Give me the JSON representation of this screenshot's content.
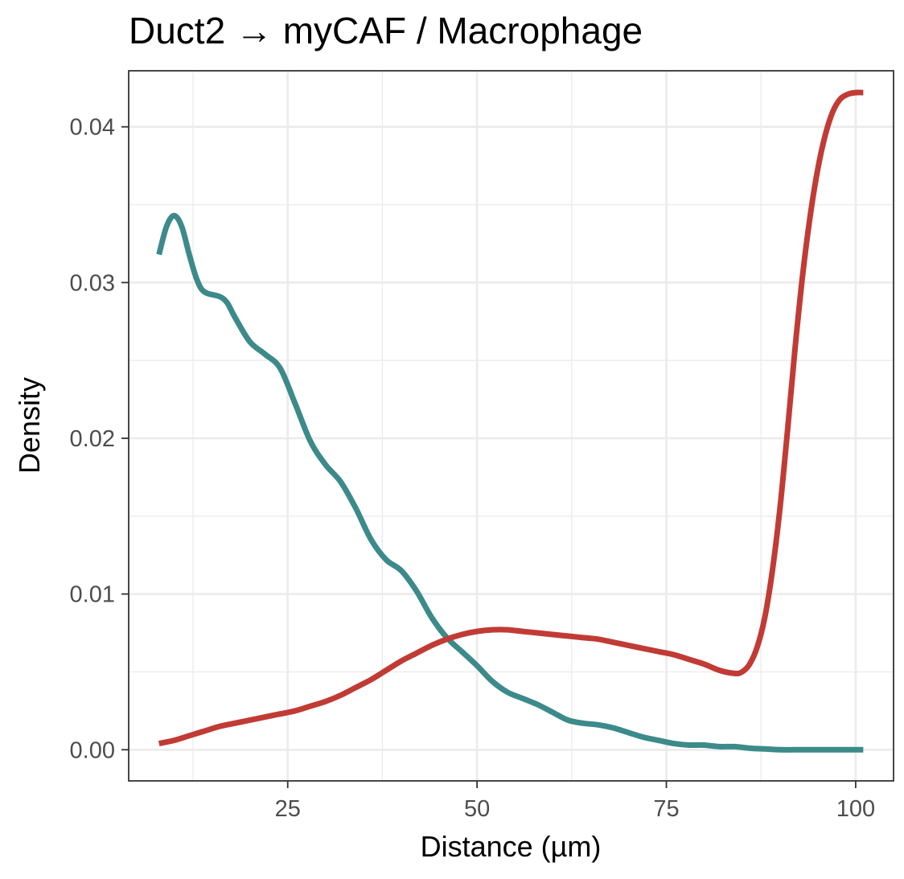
{
  "chart_data": {
    "type": "line",
    "title": "Duct2 → myCAF / Macrophage",
    "xlabel": "Distance (µm)",
    "ylabel": "Density",
    "xlim": [
      4,
      105
    ],
    "ylim": [
      -0.002,
      0.0436
    ],
    "x_ticks": [
      25,
      50,
      75,
      100
    ],
    "x_tick_labels": [
      "25",
      "50",
      "75",
      "100"
    ],
    "y_ticks": [
      0.0,
      0.01,
      0.02,
      0.03,
      0.04
    ],
    "y_tick_labels": [
      "0.00",
      "0.01",
      "0.02",
      "0.03",
      "0.04"
    ],
    "grid": true,
    "legend": "none",
    "series": [
      {
        "color": "#3d8a8a",
        "points": [
          [
            8,
            0.0318
          ],
          [
            9,
            0.0336
          ],
          [
            10,
            0.0343
          ],
          [
            11,
            0.0336
          ],
          [
            12,
            0.0318
          ],
          [
            13,
            0.0302
          ],
          [
            14,
            0.0294
          ],
          [
            16,
            0.0291
          ],
          [
            17,
            0.0287
          ],
          [
            18,
            0.0278
          ],
          [
            20,
            0.0262
          ],
          [
            22,
            0.0254
          ],
          [
            24,
            0.0245
          ],
          [
            26,
            0.0222
          ],
          [
            28,
            0.0198
          ],
          [
            30,
            0.0183
          ],
          [
            32,
            0.0172
          ],
          [
            34,
            0.0155
          ],
          [
            36,
            0.0135
          ],
          [
            38,
            0.0122
          ],
          [
            40,
            0.0115
          ],
          [
            42,
            0.0102
          ],
          [
            44,
            0.0085
          ],
          [
            46,
            0.0072
          ],
          [
            48,
            0.0063
          ],
          [
            50,
            0.0054
          ],
          [
            52,
            0.0044
          ],
          [
            54,
            0.0037
          ],
          [
            56,
            0.0033
          ],
          [
            58,
            0.0029
          ],
          [
            60,
            0.0024
          ],
          [
            62,
            0.0019
          ],
          [
            64,
            0.0017
          ],
          [
            66,
            0.0016
          ],
          [
            68,
            0.0014
          ],
          [
            70,
            0.0011
          ],
          [
            72,
            0.0008
          ],
          [
            74,
            0.0006
          ],
          [
            76,
            0.0004
          ],
          [
            78,
            0.0003
          ],
          [
            80,
            0.0003
          ],
          [
            82,
            0.0002
          ],
          [
            84,
            0.0002
          ],
          [
            86,
            0.0001
          ],
          [
            88,
            5e-05
          ],
          [
            90,
            0.0
          ],
          [
            93,
            0.0
          ],
          [
            96,
            0.0
          ],
          [
            99,
            0.0
          ],
          [
            101,
            0.0
          ]
        ]
      },
      {
        "color": "#c13b35",
        "points": [
          [
            8,
            0.0004
          ],
          [
            10,
            0.0006
          ],
          [
            12,
            0.0009
          ],
          [
            14,
            0.0012
          ],
          [
            16,
            0.0015
          ],
          [
            18,
            0.0017
          ],
          [
            20,
            0.0019
          ],
          [
            22,
            0.0021
          ],
          [
            24,
            0.0023
          ],
          [
            26,
            0.0025
          ],
          [
            28,
            0.0028
          ],
          [
            30,
            0.0031
          ],
          [
            32,
            0.0035
          ],
          [
            34,
            0.004
          ],
          [
            36,
            0.0045
          ],
          [
            38,
            0.0051
          ],
          [
            40,
            0.0057
          ],
          [
            42,
            0.0062
          ],
          [
            44,
            0.0067
          ],
          [
            46,
            0.0071
          ],
          [
            48,
            0.0074
          ],
          [
            50,
            0.0076
          ],
          [
            52,
            0.0077
          ],
          [
            54,
            0.0077
          ],
          [
            56,
            0.0076
          ],
          [
            58,
            0.0075
          ],
          [
            60,
            0.0074
          ],
          [
            62,
            0.0073
          ],
          [
            64,
            0.0072
          ],
          [
            66,
            0.0071
          ],
          [
            68,
            0.0069
          ],
          [
            70,
            0.0067
          ],
          [
            72,
            0.0065
          ],
          [
            74,
            0.0063
          ],
          [
            76,
            0.0061
          ],
          [
            78,
            0.0058
          ],
          [
            80,
            0.0055
          ],
          [
            82,
            0.0051
          ],
          [
            84,
            0.0049
          ],
          [
            85,
            0.005
          ],
          [
            86,
            0.0055
          ],
          [
            87,
            0.0066
          ],
          [
            88,
            0.0085
          ],
          [
            89,
            0.0115
          ],
          [
            90,
            0.0155
          ],
          [
            91,
            0.0205
          ],
          [
            92,
            0.0258
          ],
          [
            93,
            0.0305
          ],
          [
            94,
            0.0343
          ],
          [
            95,
            0.0373
          ],
          [
            96,
            0.0395
          ],
          [
            97,
            0.041
          ],
          [
            98,
            0.0418
          ],
          [
            99,
            0.0421
          ],
          [
            100,
            0.0422
          ],
          [
            101,
            0.0422
          ]
        ]
      }
    ]
  }
}
